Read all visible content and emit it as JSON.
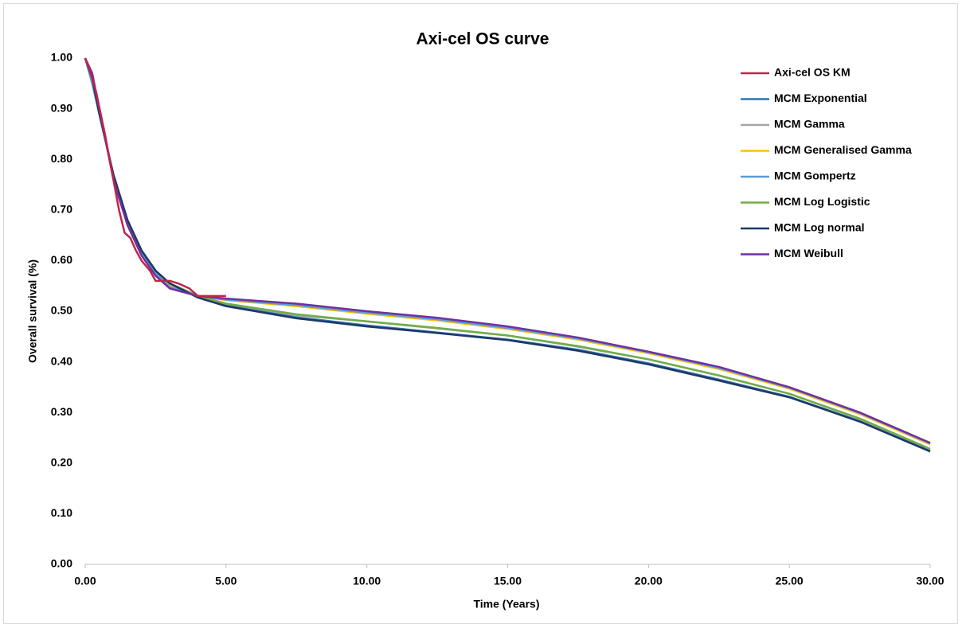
{
  "chart_data": {
    "type": "line",
    "title": "Axi-cel OS curve",
    "x_label": "Time (Years)",
    "y_label": "Overall survival (%)",
    "xlim": [
      0,
      30
    ],
    "ylim": [
      0,
      1
    ],
    "xticks": [
      {
        "value": 0,
        "label": "0.00"
      },
      {
        "value": 5,
        "label": "5.00"
      },
      {
        "value": 10,
        "label": "10.00"
      },
      {
        "value": 15,
        "label": "15.00"
      },
      {
        "value": 20,
        "label": "20.00"
      },
      {
        "value": 25,
        "label": "25.00"
      },
      {
        "value": 30,
        "label": "30.00"
      }
    ],
    "yticks": [
      {
        "value": 0,
        "label": "0.00"
      },
      {
        "value": 0.1,
        "label": "0.10"
      },
      {
        "value": 0.2,
        "label": "0.20"
      },
      {
        "value": 0.3,
        "label": "0.30"
      },
      {
        "value": 0.4,
        "label": "0.40"
      },
      {
        "value": 0.5,
        "label": "0.50"
      },
      {
        "value": 0.6,
        "label": "0.60"
      },
      {
        "value": 0.7,
        "label": "0.70"
      },
      {
        "value": 0.8,
        "label": "0.80"
      },
      {
        "value": 0.9,
        "label": "0.90"
      },
      {
        "value": 1,
        "label": "1.00"
      }
    ],
    "grid": false,
    "legend": "top-right",
    "x": [
      0,
      0.25,
      0.5,
      0.75,
      1,
      1.5,
      2,
      2.5,
      3,
      4,
      5,
      7.5,
      10,
      12.5,
      15,
      17.5,
      20,
      22.5,
      25,
      27.5,
      30
    ],
    "series": [
      {
        "name": "Axi-cel OS KM",
        "color": "#c0244a",
        "x": [
          0,
          0.2,
          0.4,
          0.55,
          0.7,
          0.8,
          1.0,
          1.2,
          1.4,
          1.6,
          1.8,
          2.0,
          2.3,
          2.5,
          3.0,
          3.3,
          3.7,
          4.0,
          5.0
        ],
        "values": [
          1.0,
          0.97,
          0.93,
          0.89,
          0.85,
          0.82,
          0.76,
          0.7,
          0.655,
          0.645,
          0.62,
          0.6,
          0.58,
          0.56,
          0.56,
          0.555,
          0.545,
          0.53,
          0.53
        ]
      },
      {
        "name": "MCM Exponential",
        "color": "#2e75b6",
        "values": [
          1.0,
          0.95,
          0.89,
          0.83,
          0.77,
          0.68,
          0.62,
          0.58,
          0.555,
          0.528,
          0.512,
          0.488,
          0.472,
          0.458,
          0.444,
          0.424,
          0.397,
          0.365,
          0.331,
          0.283,
          0.224
        ]
      },
      {
        "name": "MCM Gamma",
        "color": "#a5a5a5",
        "values": [
          1.0,
          0.96,
          0.9,
          0.83,
          0.77,
          0.68,
          0.62,
          0.58,
          0.555,
          0.53,
          0.515,
          0.492,
          0.48,
          0.466,
          0.452,
          0.43,
          0.405,
          0.373,
          0.337,
          0.287,
          0.228
        ]
      },
      {
        "name": "MCM Generalised Gamma",
        "color": "#ffc000",
        "values": [
          1.0,
          0.96,
          0.9,
          0.83,
          0.77,
          0.68,
          0.62,
          0.58,
          0.55,
          0.53,
          0.522,
          0.51,
          0.495,
          0.482,
          0.465,
          0.444,
          0.417,
          0.386,
          0.347,
          0.297,
          0.237
        ]
      },
      {
        "name": "MCM Gompertz",
        "color": "#5b9bd5",
        "values": [
          1.0,
          0.95,
          0.89,
          0.83,
          0.77,
          0.68,
          0.615,
          0.575,
          0.548,
          0.53,
          0.523,
          0.512,
          0.497,
          0.484,
          0.467,
          0.446,
          0.419,
          0.388,
          0.349,
          0.299,
          0.239
        ]
      },
      {
        "name": "MCM Log Logistic",
        "color": "#70ad47",
        "values": [
          1.0,
          0.96,
          0.9,
          0.83,
          0.77,
          0.68,
          0.62,
          0.58,
          0.555,
          0.53,
          0.515,
          0.494,
          0.48,
          0.467,
          0.452,
          0.431,
          0.405,
          0.373,
          0.337,
          0.288,
          0.228
        ]
      },
      {
        "name": "MCM Log normal",
        "color": "#1f3864",
        "values": [
          1.0,
          0.96,
          0.89,
          0.83,
          0.77,
          0.68,
          0.62,
          0.58,
          0.555,
          0.527,
          0.51,
          0.486,
          0.47,
          0.457,
          0.443,
          0.422,
          0.395,
          0.363,
          0.33,
          0.282,
          0.223
        ]
      },
      {
        "name": "MCM Weibull",
        "color": "#7030a0",
        "values": [
          1.0,
          0.97,
          0.9,
          0.83,
          0.76,
          0.67,
          0.61,
          0.57,
          0.545,
          0.53,
          0.525,
          0.515,
          0.5,
          0.487,
          0.47,
          0.448,
          0.42,
          0.39,
          0.35,
          0.3,
          0.24
        ]
      }
    ]
  }
}
